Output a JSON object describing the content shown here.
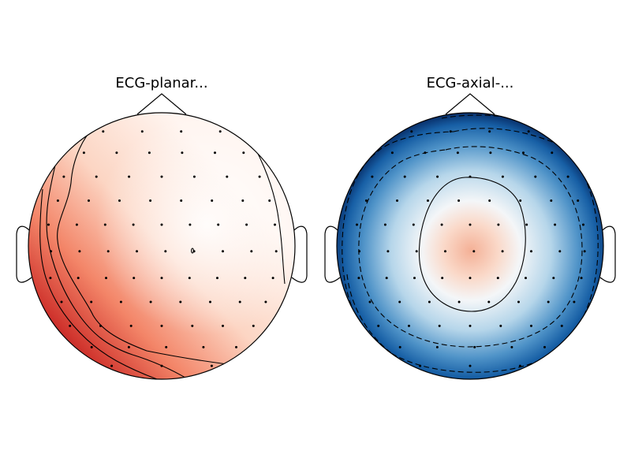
{
  "figure": {
    "background": "#ffffff",
    "outline_color": "#000000",
    "sensor_color": "#000000"
  },
  "chart_data": [
    {
      "type": "heatmap",
      "title": "ECG-planar...",
      "colormap": "RdBu_r",
      "colors": [
        "#67001f",
        "#b2182b",
        "#f4a582",
        "#fddbc7",
        "#fff5f0"
      ],
      "pattern": "gradient increasing toward left and bottom-left edge (deep red); near-white around the center",
      "contour_style": "solid",
      "contour_count": 5
    },
    {
      "type": "heatmap",
      "title": "ECG-axial-...",
      "colormap": "RdBu_r",
      "colors": [
        "#08306b",
        "#2166ac",
        "#92c5de",
        "#f7f7f7",
        "#f4a582"
      ],
      "pattern": "light red blob in the center, surrounded by white, deepening to dark blue at the rim",
      "contour_style": "dashed outside, solid around center",
      "contour_count": 4
    }
  ]
}
